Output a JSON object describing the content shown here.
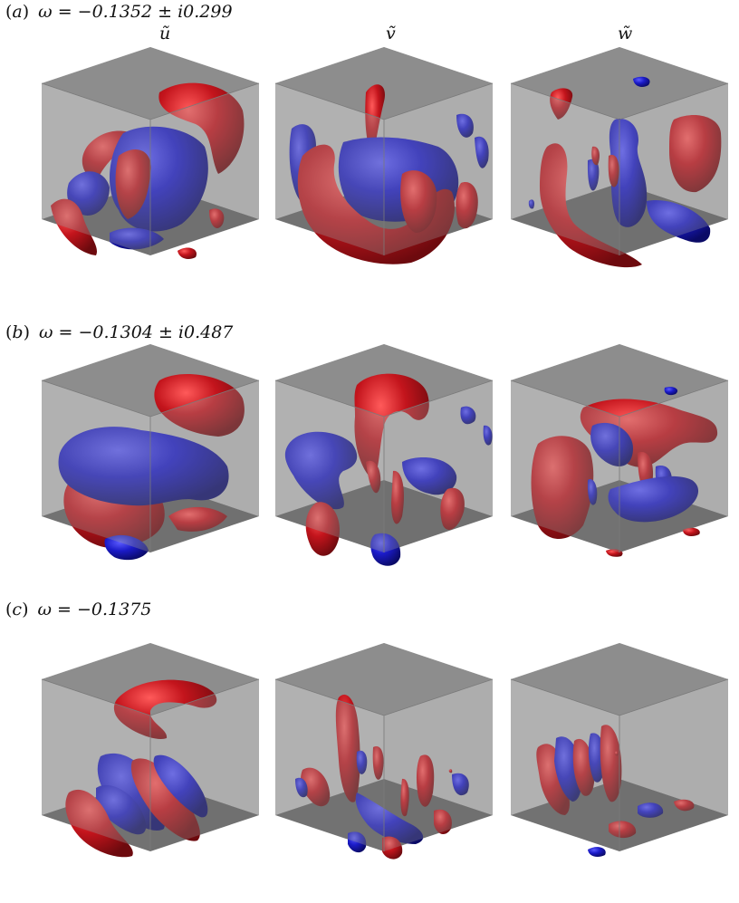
{
  "column_headers": [
    "ũ",
    "ṽ",
    "w̃"
  ],
  "panels": [
    {
      "letter": "a",
      "omega": "ω = −0.1352 ± i0.299"
    },
    {
      "letter": "b",
      "omega": "ω = −0.1304 ± i0.487"
    },
    {
      "letter": "c",
      "omega": "ω = −0.1375"
    }
  ],
  "colors": {
    "positive": "#b3111a",
    "negative": "#1a1ac2",
    "box_light": "#a9a9a9",
    "box_dark": "#5a5a5a",
    "box_back": "#bdbdbd"
  }
}
